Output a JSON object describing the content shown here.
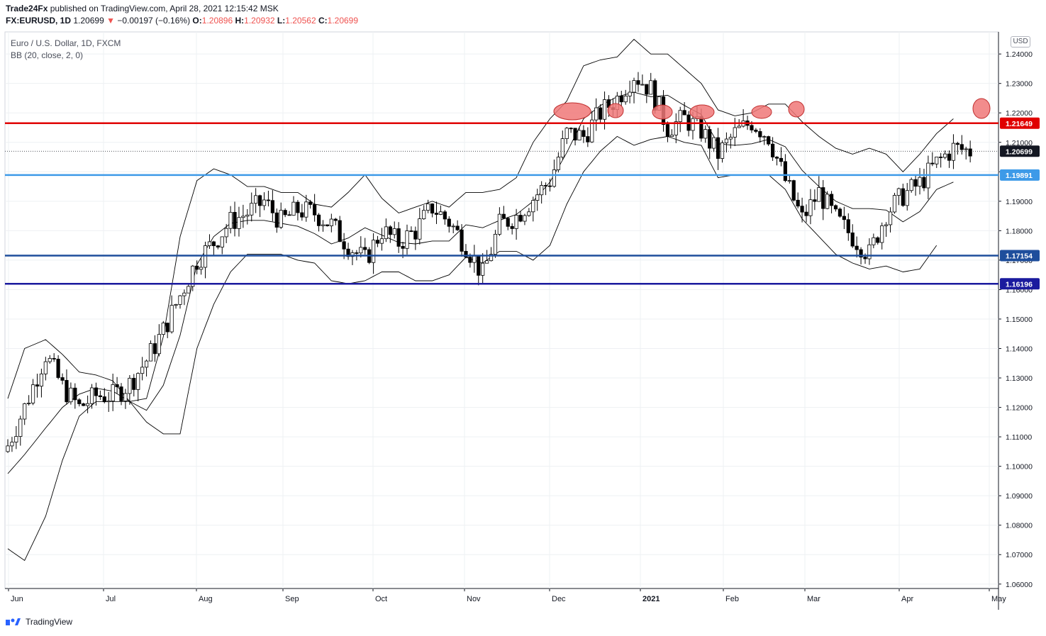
{
  "header": {
    "author": "Trade24Fx",
    "published_text": "published on TradingView.com, April 28, 2021 12:15:42 MSK",
    "symbol": "FX:EURUSD, 1D",
    "price": "1.20699",
    "change_arrow": "▼",
    "change": "−0.00197 (−0.16%)",
    "open_label": "O:",
    "open": "1.20896",
    "high_label": "H:",
    "high": "1.20932",
    "low_label": "L:",
    "low": "1.20562",
    "close_label": "C:",
    "close": "1.20699"
  },
  "legend": {
    "instrument": "Euro / U.S. Dollar, 1D, FXCM",
    "indicator": "BB (20, close, 2, 0)"
  },
  "currency_badge": "USD",
  "footer": {
    "brand": "TradingView"
  },
  "colors": {
    "up": "#ffffff",
    "down": "#000000",
    "bands": "#000000",
    "resistance": "#e00000",
    "support_light": "#3d9ae8",
    "support_dark": "#1e4e9c",
    "support_navy": "#1a1a9e",
    "marker_fill": "#f07878",
    "grid": "#eef0f3"
  },
  "chart_data": {
    "type": "candlestick",
    "yticks": [
      "1.06000",
      "1.07000",
      "1.08000",
      "1.09000",
      "1.10000",
      "1.11000",
      "1.12000",
      "1.13000",
      "1.14000",
      "1.15000",
      "1.16000",
      "1.17000",
      "1.18000",
      "1.19000",
      "1.20000",
      "1.21000",
      "1.22000",
      "1.23000",
      "1.24000"
    ],
    "ylim": [
      1.0585,
      1.2475
    ],
    "xticks": [
      "Jun",
      "Jul",
      "Aug",
      "Sep",
      "Oct",
      "Nov",
      "Dec",
      "2021",
      "Feb",
      "Mar",
      "Apr",
      "May"
    ],
    "last_price": "1.20699",
    "horizontal_levels": [
      {
        "value": 1.21649,
        "label": "1.21649",
        "color": "#e00000"
      },
      {
        "value": 1.19891,
        "label": "1.19891",
        "color": "#3d9ae8"
      },
      {
        "value": 1.17154,
        "label": "1.17154",
        "color": "#1e4e9c"
      },
      {
        "value": 1.16196,
        "label": "1.16196",
        "color": "#1a1a9e"
      }
    ],
    "close_path": [
      [
        0,
        1.107
      ],
      [
        4,
        1.12
      ],
      [
        9,
        1.138
      ],
      [
        13,
        1.127
      ],
      [
        17,
        1.12
      ],
      [
        21,
        1.124
      ],
      [
        25,
        1.124
      ],
      [
        29,
        1.128
      ],
      [
        33,
        1.136
      ],
      [
        37,
        1.146
      ],
      [
        41,
        1.158
      ],
      [
        45,
        1.17
      ],
      [
        49,
        1.176
      ],
      [
        53,
        1.183
      ],
      [
        57,
        1.186
      ],
      [
        61,
        1.19
      ],
      [
        65,
        1.183
      ],
      [
        69,
        1.187
      ],
      [
        73,
        1.186
      ],
      [
        77,
        1.182
      ],
      [
        81,
        1.175
      ],
      [
        85,
        1.17
      ],
      [
        89,
        1.18
      ],
      [
        93,
        1.176
      ],
      [
        97,
        1.18
      ],
      [
        101,
        1.188
      ],
      [
        105,
        1.183
      ],
      [
        109,
        1.175
      ],
      [
        113,
        1.165
      ],
      [
        117,
        1.182
      ],
      [
        121,
        1.185
      ],
      [
        125,
        1.191
      ],
      [
        129,
        1.197
      ],
      [
        133,
        1.213
      ],
      [
        137,
        1.212
      ],
      [
        141,
        1.22
      ],
      [
        145,
        1.225
      ],
      [
        149,
        1.233
      ],
      [
        153,
        1.228
      ],
      [
        157,
        1.215
      ],
      [
        161,
        1.218
      ],
      [
        165,
        1.214
      ],
      [
        169,
        1.206
      ],
      [
        173,
        1.213
      ],
      [
        177,
        1.217
      ],
      [
        181,
        1.212
      ],
      [
        185,
        1.197
      ],
      [
        189,
        1.184
      ],
      [
        193,
        1.193
      ],
      [
        197,
        1.184
      ],
      [
        201,
        1.178
      ],
      [
        205,
        1.172
      ],
      [
        209,
        1.186
      ],
      [
        213,
        1.192
      ],
      [
        217,
        1.196
      ],
      [
        221,
        1.203
      ],
      [
        225,
        1.208
      ],
      [
        229,
        1.207
      ]
    ],
    "bb_upper_path": [
      [
        0,
        1.123
      ],
      [
        4,
        1.14
      ],
      [
        9,
        1.143
      ],
      [
        13,
        1.138
      ],
      [
        17,
        1.132
      ],
      [
        21,
        1.131
      ],
      [
        25,
        1.129
      ],
      [
        29,
        1.122
      ],
      [
        33,
        1.123
      ],
      [
        37,
        1.144
      ],
      [
        41,
        1.178
      ],
      [
        45,
        1.197
      ],
      [
        49,
        1.201
      ],
      [
        53,
        1.199
      ],
      [
        57,
        1.195
      ],
      [
        61,
        1.195
      ],
      [
        65,
        1.193
      ],
      [
        69,
        1.193
      ],
      [
        73,
        1.189
      ],
      [
        77,
        1.188
      ],
      [
        81,
        1.193
      ],
      [
        85,
        1.199
      ],
      [
        89,
        1.191
      ],
      [
        93,
        1.186
      ],
      [
        97,
        1.188
      ],
      [
        101,
        1.19
      ],
      [
        105,
        1.188
      ],
      [
        109,
        1.193
      ],
      [
        113,
        1.193
      ],
      [
        117,
        1.194
      ],
      [
        121,
        1.198
      ],
      [
        125,
        1.21
      ],
      [
        129,
        1.218
      ],
      [
        133,
        1.224
      ],
      [
        137,
        1.236
      ],
      [
        141,
        1.238
      ],
      [
        145,
        1.239
      ],
      [
        149,
        1.245
      ],
      [
        153,
        1.24
      ],
      [
        157,
        1.24
      ],
      [
        161,
        1.235
      ],
      [
        165,
        1.23
      ],
      [
        169,
        1.221
      ],
      [
        173,
        1.219
      ],
      [
        177,
        1.22
      ],
      [
        181,
        1.223
      ],
      [
        185,
        1.223
      ],
      [
        189,
        1.217
      ],
      [
        193,
        1.212
      ],
      [
        197,
        1.208
      ],
      [
        201,
        1.206
      ],
      [
        205,
        1.208
      ],
      [
        209,
        1.206
      ],
      [
        213,
        1.2
      ],
      [
        217,
        1.206
      ],
      [
        221,
        1.213
      ],
      [
        225,
        1.218
      ]
    ],
    "bb_lower_path": [
      [
        0,
        1.072
      ],
      [
        4,
        1.068
      ],
      [
        9,
        1.083
      ],
      [
        13,
        1.102
      ],
      [
        17,
        1.117
      ],
      [
        21,
        1.122
      ],
      [
        25,
        1.122
      ],
      [
        29,
        1.122
      ],
      [
        33,
        1.115
      ],
      [
        37,
        1.111
      ],
      [
        41,
        1.111
      ],
      [
        45,
        1.14
      ],
      [
        49,
        1.155
      ],
      [
        53,
        1.166
      ],
      [
        57,
        1.172
      ],
      [
        61,
        1.172
      ],
      [
        65,
        1.172
      ],
      [
        69,
        1.17
      ],
      [
        73,
        1.169
      ],
      [
        77,
        1.163
      ],
      [
        81,
        1.162
      ],
      [
        85,
        1.163
      ],
      [
        89,
        1.166
      ],
      [
        93,
        1.166
      ],
      [
        97,
        1.163
      ],
      [
        101,
        1.163
      ],
      [
        105,
        1.165
      ],
      [
        109,
        1.171
      ],
      [
        113,
        1.169
      ],
      [
        117,
        1.173
      ],
      [
        121,
        1.173
      ],
      [
        125,
        1.17
      ],
      [
        129,
        1.175
      ],
      [
        133,
        1.189
      ],
      [
        137,
        1.2
      ],
      [
        141,
        1.207
      ],
      [
        145,
        1.212
      ],
      [
        149,
        1.209
      ],
      [
        153,
        1.211
      ],
      [
        157,
        1.212
      ],
      [
        161,
        1.21
      ],
      [
        165,
        1.209
      ],
      [
        169,
        1.198
      ],
      [
        173,
        1.199
      ],
      [
        177,
        1.199
      ],
      [
        181,
        1.199
      ],
      [
        185,
        1.194
      ],
      [
        189,
        1.184
      ],
      [
        193,
        1.178
      ],
      [
        197,
        1.172
      ],
      [
        201,
        1.169
      ],
      [
        205,
        1.167
      ],
      [
        209,
        1.168
      ],
      [
        213,
        1.166
      ],
      [
        217,
        1.167
      ],
      [
        221,
        1.175
      ]
    ],
    "annotations": [
      {
        "shape": "ellipse",
        "date": "Dec",
        "value": 1.2184
      },
      {
        "shape": "ellipse",
        "date": "Dec",
        "value": 1.2184
      },
      {
        "shape": "ellipse",
        "date": "Jan",
        "value": 1.2184
      },
      {
        "shape": "ellipse",
        "date": "Jan",
        "value": 1.2184
      },
      {
        "shape": "ellipse",
        "date": "Feb",
        "value": 1.2184
      },
      {
        "shape": "ellipse",
        "date": "Feb",
        "value": 1.2187
      },
      {
        "shape": "ellipse",
        "date": "Apr",
        "value": 1.2185
      }
    ]
  }
}
